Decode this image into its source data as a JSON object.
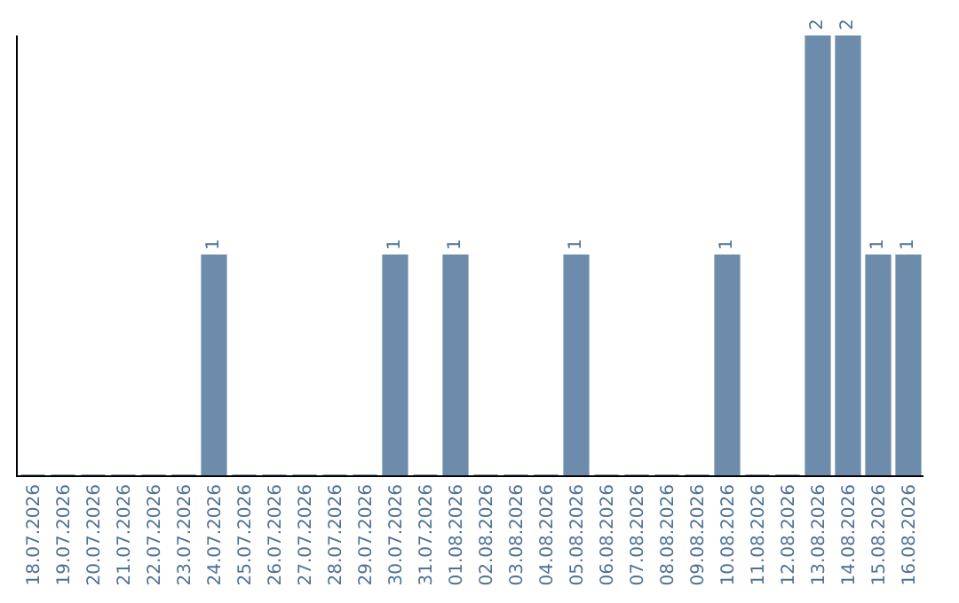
{
  "chart_data": {
    "type": "bar",
    "categories": [
      "18.07.2026",
      "19.07.2026",
      "20.07.2026",
      "21.07.2026",
      "22.07.2026",
      "23.07.2026",
      "24.07.2026",
      "25.07.2026",
      "26.07.2026",
      "27.07.2026",
      "28.07.2026",
      "29.07.2026",
      "30.07.2026",
      "31.07.2026",
      "01.08.2026",
      "02.08.2026",
      "03.08.2026",
      "04.08.2026",
      "05.08.2026",
      "06.08.2026",
      "07.08.2026",
      "08.08.2026",
      "09.08.2026",
      "10.08.2026",
      "11.08.2026",
      "12.08.2026",
      "13.08.2026",
      "14.08.2026",
      "15.08.2026",
      "16.08.2026"
    ],
    "values": [
      0,
      0,
      0,
      0,
      0,
      0,
      1,
      0,
      0,
      0,
      0,
      0,
      1,
      0,
      1,
      0,
      0,
      0,
      1,
      0,
      0,
      0,
      0,
      1,
      0,
      0,
      2,
      2,
      1,
      1
    ],
    "value_labels": [
      null,
      null,
      null,
      null,
      null,
      null,
      "1",
      null,
      null,
      null,
      null,
      null,
      "1",
      null,
      "1",
      null,
      null,
      null,
      "1",
      null,
      null,
      null,
      null,
      "1",
      null,
      null,
      "2",
      "2",
      "1",
      "1"
    ],
    "color": "#6d8cab",
    "ylim": [
      0,
      2
    ],
    "legend": false
  }
}
